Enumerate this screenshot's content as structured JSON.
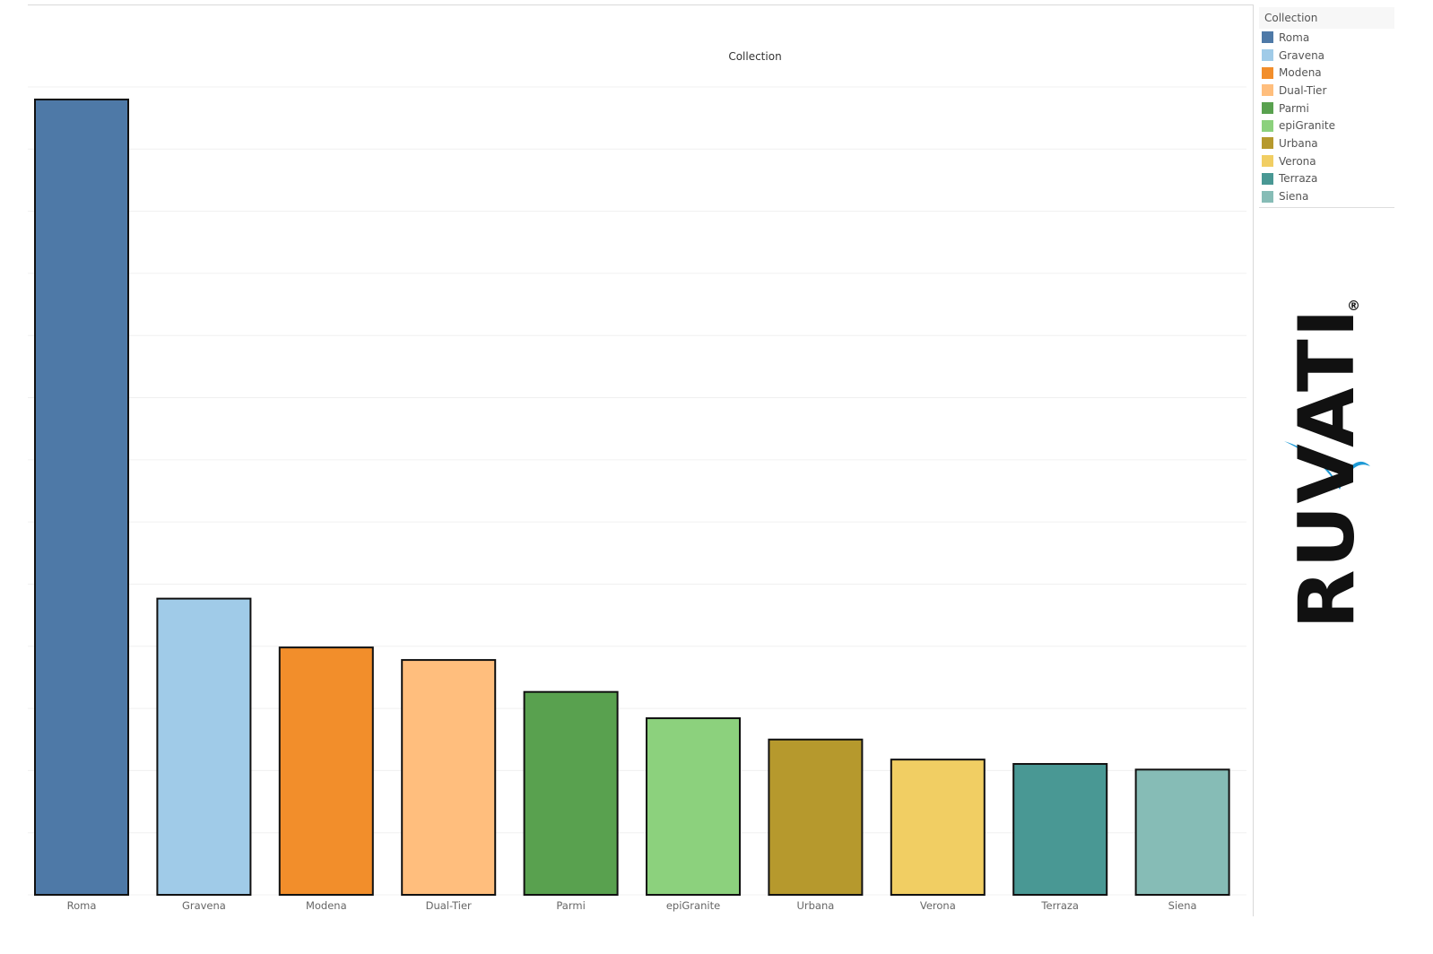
{
  "header_title": "Collection",
  "chart_data": {
    "type": "bar",
    "title": "Collection",
    "categories": [
      "Roma",
      "Gravena",
      "Modena",
      "Dual-Tier",
      "Parmi",
      "epiGranite",
      "Urbana",
      "Verona",
      "Terraza",
      "Siena"
    ],
    "values": [
      127,
      47.3,
      39.5,
      37.5,
      32.4,
      28.2,
      24.8,
      21.6,
      20.9,
      20
    ],
    "colors": [
      "#4e79a7",
      "#a0cbe8",
      "#f28e2b",
      "#ffbe7d",
      "#59a14f",
      "#8cd17d",
      "#b6992d",
      "#f1ce63",
      "#499894",
      "#86bcb6"
    ],
    "ylim": [
      0,
      129
    ],
    "grid": true,
    "legend_position": "right",
    "xlabel": "",
    "ylabel": ""
  },
  "legend": {
    "title": "Collection",
    "items": [
      {
        "label": "Roma",
        "color": "#4e79a7"
      },
      {
        "label": "Gravena",
        "color": "#a0cbe8"
      },
      {
        "label": "Modena",
        "color": "#f28e2b"
      },
      {
        "label": "Dual-Tier",
        "color": "#ffbe7d"
      },
      {
        "label": "Parmi",
        "color": "#59a14f"
      },
      {
        "label": "epiGranite",
        "color": "#8cd17d"
      },
      {
        "label": "Urbana",
        "color": "#b6992d"
      },
      {
        "label": "Verona",
        "color": "#f1ce63"
      },
      {
        "label": "Terraza",
        "color": "#499894"
      },
      {
        "label": "Siena",
        "color": "#86bcb6"
      }
    ]
  },
  "logo": {
    "text": "RUVATI",
    "mark": "®",
    "accent": "#1e9ad6"
  }
}
